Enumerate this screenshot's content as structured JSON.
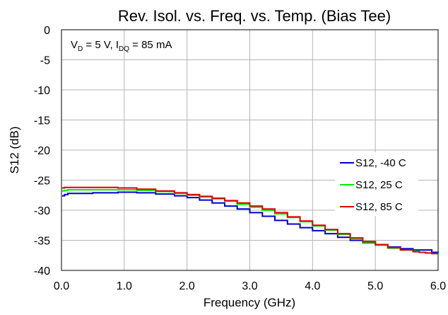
{
  "chart_data": {
    "type": "line",
    "title": "Rev. Isol. vs. Freq. vs. Temp. (Bias Tee)",
    "xlabel": "Frequency (GHz)",
    "ylabel": "S12 (dB)",
    "xlim": [
      0,
      6
    ],
    "ylim": [
      -40,
      0
    ],
    "x_ticks": [
      "0.0",
      "1.0",
      "2.0",
      "3.0",
      "4.0",
      "5.0",
      "6.0"
    ],
    "y_ticks": [
      "0",
      "-5",
      "-10",
      "-15",
      "-20",
      "-25",
      "-30",
      "-35",
      "-40"
    ],
    "x_tick_values": [
      0,
      1,
      2,
      3,
      4,
      5,
      6
    ],
    "y_tick_values": [
      0,
      -5,
      -10,
      -15,
      -20,
      -25,
      -30,
      -35,
      -40
    ],
    "grid": true,
    "legend_position": "right",
    "annotation": {
      "vd_main": "V",
      "vd_sub": "D",
      "vd_rest": " = 5 V, I",
      "idq_sub": "DQ",
      "idq_rest": " = 85 mA"
    },
    "series": [
      {
        "name": "S12, -40 C",
        "color": "#0000cc",
        "x": [
          0.01,
          0.05,
          0.1,
          0.5,
          0.9,
          1.2,
          1.5,
          1.8,
          2.0,
          2.2,
          2.4,
          2.6,
          2.8,
          3.0,
          3.2,
          3.4,
          3.6,
          3.8,
          4.0,
          4.2,
          4.4,
          4.6,
          4.8,
          5.0,
          5.2,
          5.4,
          5.6,
          5.7,
          5.8,
          5.9,
          6.0
        ],
        "y": [
          -27.6,
          -27.4,
          -27.2,
          -27.1,
          -27.0,
          -27.1,
          -27.3,
          -27.6,
          -27.9,
          -28.3,
          -28.8,
          -29.3,
          -29.8,
          -30.4,
          -31.0,
          -31.7,
          -32.3,
          -32.9,
          -33.4,
          -33.9,
          -34.5,
          -35.0,
          -35.4,
          -35.8,
          -36.1,
          -36.4,
          -36.6,
          -36.6,
          -36.6,
          -37.0,
          -37.2
        ]
      },
      {
        "name": "S12, 25 C",
        "color": "#00ee00",
        "x": [
          0.01,
          0.05,
          0.1,
          0.5,
          0.9,
          1.2,
          1.5,
          1.8,
          2.0,
          2.2,
          2.4,
          2.6,
          2.8,
          3.0,
          3.2,
          3.4,
          3.6,
          3.8,
          4.0,
          4.2,
          4.4,
          4.6,
          4.8,
          5.0,
          5.2,
          5.4,
          5.6,
          5.7,
          5.8,
          5.9,
          6.0
        ],
        "y": [
          -26.8,
          -26.7,
          -26.6,
          -26.6,
          -26.6,
          -26.7,
          -26.9,
          -27.2,
          -27.5,
          -27.8,
          -28.1,
          -28.5,
          -29.0,
          -29.5,
          -30.0,
          -30.6,
          -31.2,
          -31.9,
          -32.6,
          -33.3,
          -34.0,
          -34.7,
          -35.3,
          -35.8,
          -36.3,
          -36.6,
          -36.8,
          -37.0,
          -37.1,
          -37.2,
          -37.4
        ]
      },
      {
        "name": "S12, 85 C",
        "color": "#dd0000",
        "x": [
          0.01,
          0.05,
          0.1,
          0.5,
          0.9,
          1.2,
          1.5,
          1.8,
          2.0,
          2.2,
          2.4,
          2.6,
          2.8,
          3.0,
          3.2,
          3.4,
          3.6,
          3.8,
          4.0,
          4.2,
          4.4,
          4.6,
          4.8,
          5.0,
          5.2,
          5.4,
          5.6,
          5.7,
          5.8,
          5.9,
          6.0
        ],
        "y": [
          -26.3,
          -26.2,
          -26.2,
          -26.2,
          -26.3,
          -26.5,
          -26.8,
          -27.1,
          -27.4,
          -27.7,
          -28.0,
          -28.4,
          -28.8,
          -29.3,
          -29.8,
          -30.4,
          -31.1,
          -31.8,
          -32.5,
          -33.2,
          -33.9,
          -34.6,
          -35.2,
          -35.7,
          -36.2,
          -36.6,
          -36.9,
          -37.0,
          -37.1,
          -37.2,
          -37.2
        ]
      }
    ]
  }
}
